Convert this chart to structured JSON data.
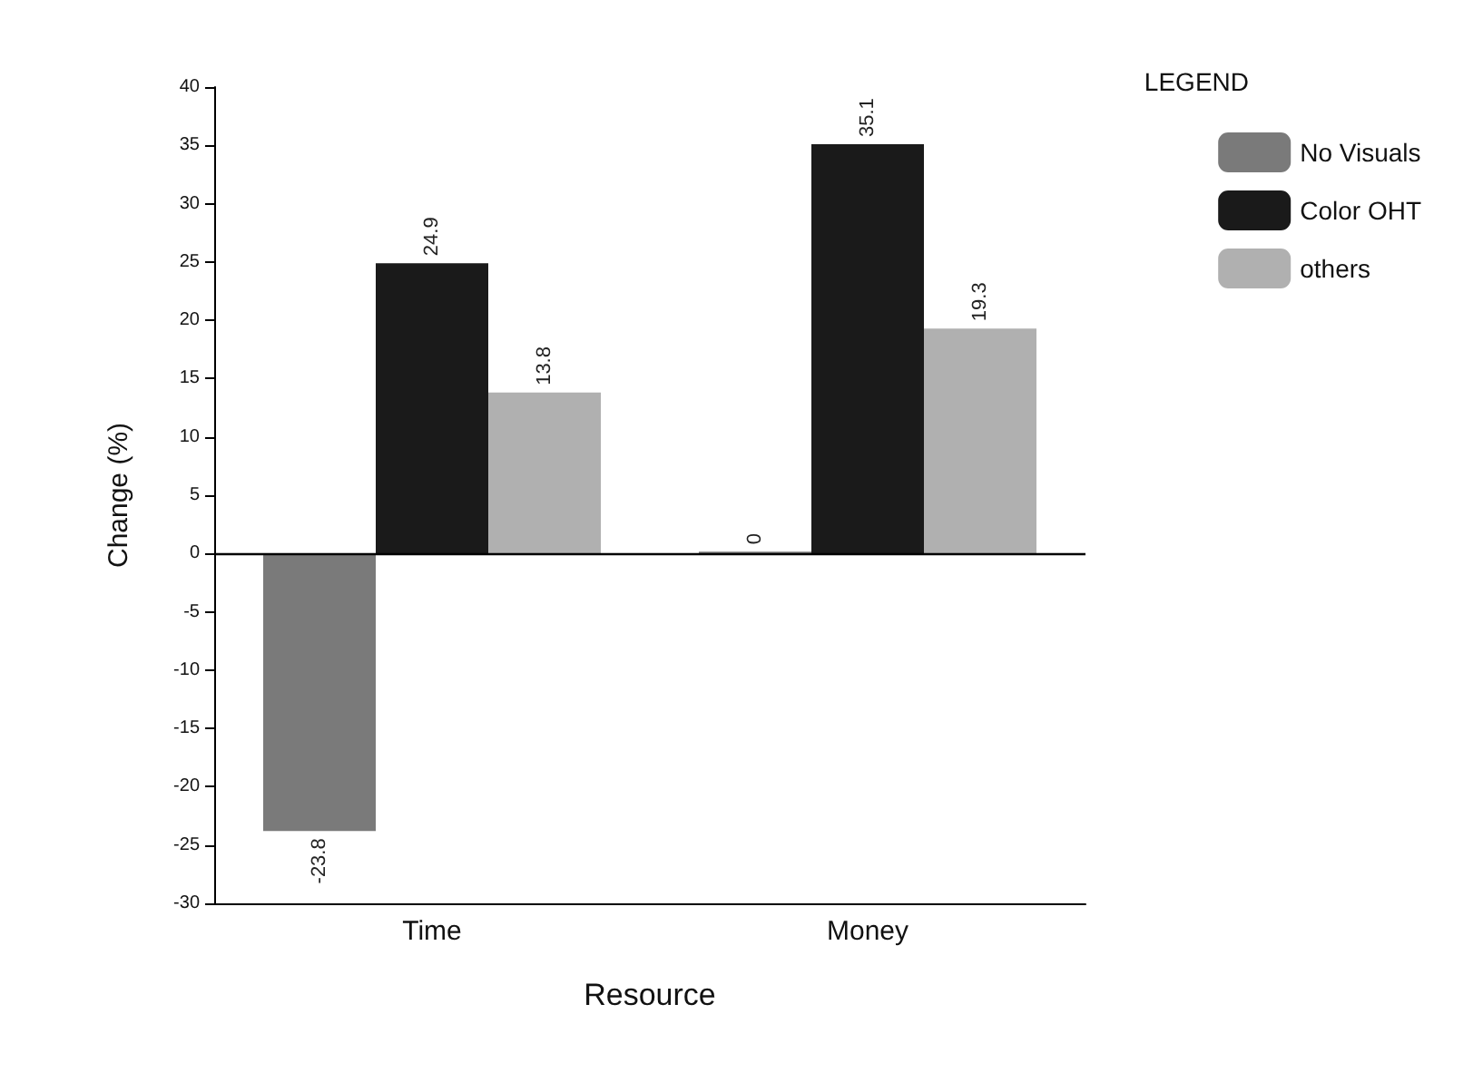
{
  "chart_data": {
    "type": "bar",
    "xlabel": "Resource",
    "ylabel": "Change (%)",
    "legend_title": "LEGEND",
    "categories": [
      "Time",
      "Money"
    ],
    "series": [
      {
        "name": "No Visuals",
        "color": "#7a7a7a",
        "values": [
          -23.8,
          0
        ]
      },
      {
        "name": "Color OHT",
        "color": "#1a1a1a",
        "values": [
          24.9,
          35.1
        ]
      },
      {
        "name": "others",
        "color": "#b0b0b0",
        "values": [
          13.8,
          19.3
        ]
      }
    ],
    "ylim": [
      -30,
      40
    ],
    "yticks": [
      -30,
      -25,
      -20,
      -15,
      -10,
      -5,
      0,
      5,
      10,
      15,
      20,
      25,
      30,
      35,
      40
    ],
    "ref_lines": [
      {
        "axis": "y",
        "value": 0
      }
    ],
    "data_labels": true,
    "grid": false,
    "legend": "top right"
  }
}
